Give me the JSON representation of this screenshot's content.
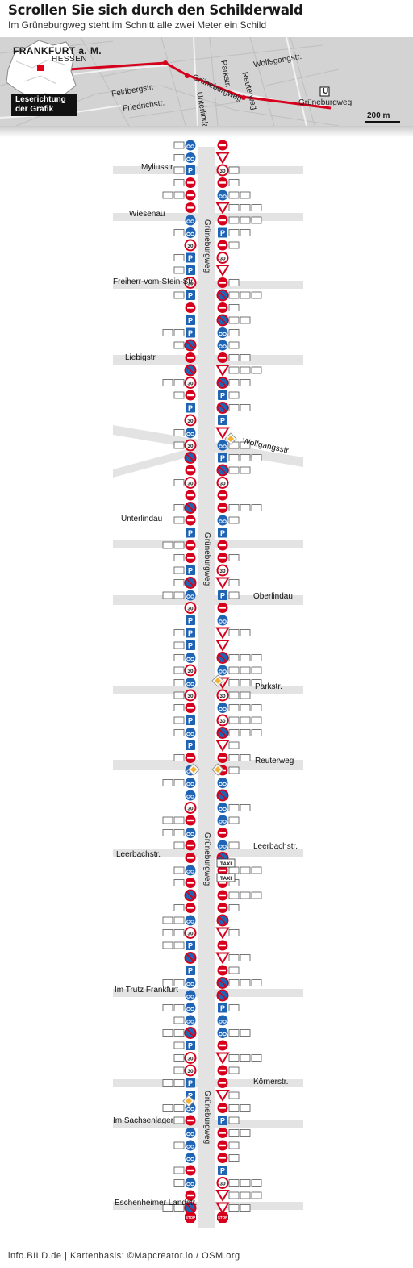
{
  "title": "Scrollen Sie sich durch den Schilderwald",
  "subtitle": "Im Grüneburgweg steht im Schnitt alle zwei Meter ein Schild",
  "map": {
    "city": "FRANKFURT a. M.",
    "state": "HESSEN",
    "reading_direction": [
      "Leserichtung",
      "der Grafik"
    ],
    "scale": "200 m",
    "labels": [
      "Feldbergstr.",
      "Friedrichstr.",
      "Grüneburgweg",
      "Unterlindau",
      "Parkstr.",
      "Reuterweg",
      "Wolfsgangstr.",
      "Grüneburgweg"
    ],
    "ubahn_symbol": "U",
    "colors": {
      "route": "#d6001c",
      "map_bg": "#d3d3d3",
      "marker": "#e2001a"
    }
  },
  "street": {
    "name": "Grüneburgweg",
    "cross_streets": [
      "Myliusstr.",
      "Wiesenau",
      "Freiherr-vom-Stein-Str.",
      "Liebigstr",
      "Wolfgangsstr.",
      "Unterlindau",
      "Oberlindau",
      "Parkstr.",
      "Reuterweg",
      "Leerbachstr.",
      "Leerbachstr.",
      "Im Trutz Frankfurt",
      "Körnerstr.",
      "Im Sachsenlager",
      "Eschenheimer Landstr."
    ],
    "sign_legend": {
      "red": "#d6001c",
      "blue": "#1f63b4",
      "diamond": "#f2b233",
      "road": "#e3e3e3"
    },
    "sign_texts": {
      "speed": "30",
      "parking": "P",
      "taxi": "TAXI",
      "stop": "STOP"
    }
  },
  "footer": "info.BILD.de | Kartenbasis: ©Mapcreator.io / OSM.org"
}
